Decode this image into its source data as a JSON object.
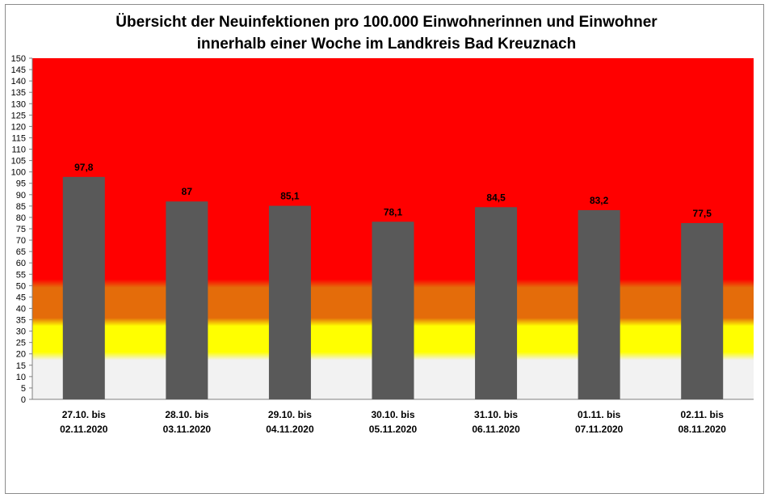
{
  "chart_data": {
    "type": "bar",
    "title_lines": [
      "Übersicht der Neuinfektionen pro 100.000 Einwohnerinnen und Einwohner",
      "innerhalb einer Woche im Landkreis Bad Kreuznach"
    ],
    "categories": [
      [
        "27.10. bis",
        "02.11.2020"
      ],
      [
        "28.10. bis",
        "03.11.2020"
      ],
      [
        "29.10. bis",
        "04.11.2020"
      ],
      [
        "30.10. bis",
        "05.11.2020"
      ],
      [
        "31.10. bis",
        "06.11.2020"
      ],
      [
        "01.11. bis",
        "07.11.2020"
      ],
      [
        "02.11. bis",
        "08.11.2020"
      ]
    ],
    "values": [
      97.8,
      87,
      85.1,
      78.1,
      84.5,
      83.2,
      77.5
    ],
    "value_labels": [
      "97,8",
      "87",
      "85,1",
      "78,1",
      "84,5",
      "83,2",
      "77,5"
    ],
    "ylim": [
      0,
      150
    ],
    "ytick_step": 5,
    "bar_color": "#595959",
    "background_bands": [
      {
        "from": 0,
        "to": 19,
        "color": "#f2f2f2"
      },
      {
        "from": 19,
        "to": 34,
        "color": "#ffff00"
      },
      {
        "from": 34,
        "to": 51,
        "color": "#e46c0a"
      },
      {
        "from": 51,
        "to": 150,
        "color": "#ff0000"
      }
    ],
    "legend": "none",
    "grid": false
  }
}
